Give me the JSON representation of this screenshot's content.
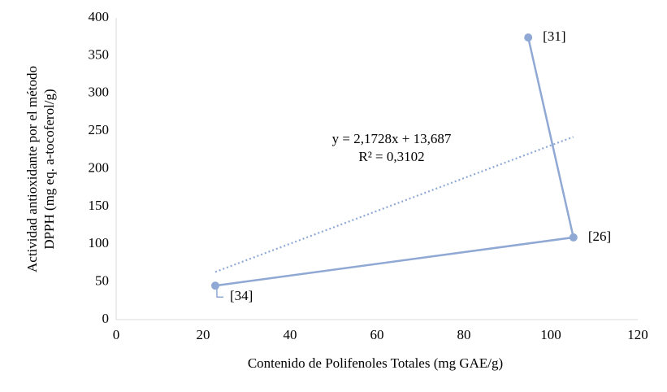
{
  "chart_data": {
    "type": "scatter",
    "x_label": "Contenido de Polifenoles Totales (mg GAE/g)",
    "y_label": [
      "Actividad antioxidante por el método",
      "DPPH (mg eq. a-tocoferol/g)"
    ],
    "xlim": [
      0,
      120
    ],
    "xticks": [
      0,
      20,
      40,
      60,
      80,
      100,
      120
    ],
    "ylim": [
      0,
      400
    ],
    "yticks": [
      0,
      50,
      100,
      150,
      200,
      250,
      300,
      350,
      400
    ],
    "grid": false,
    "series": [
      {
        "color": "#8fa8d4",
        "x": [
          22.8,
          105.2,
          94.8
        ],
        "values": [
          45,
          109,
          374
        ],
        "point_labels": [
          "[34]",
          "[26]",
          "[31]"
        ]
      }
    ],
    "trendline": {
      "color": "#8fa8d4",
      "x": [
        22.8,
        105.2
      ],
      "values": [
        63.2,
        242.3
      ],
      "equation": "y = 2,1728x + 13,687",
      "r_squared": "R² = 0,3102"
    }
  }
}
